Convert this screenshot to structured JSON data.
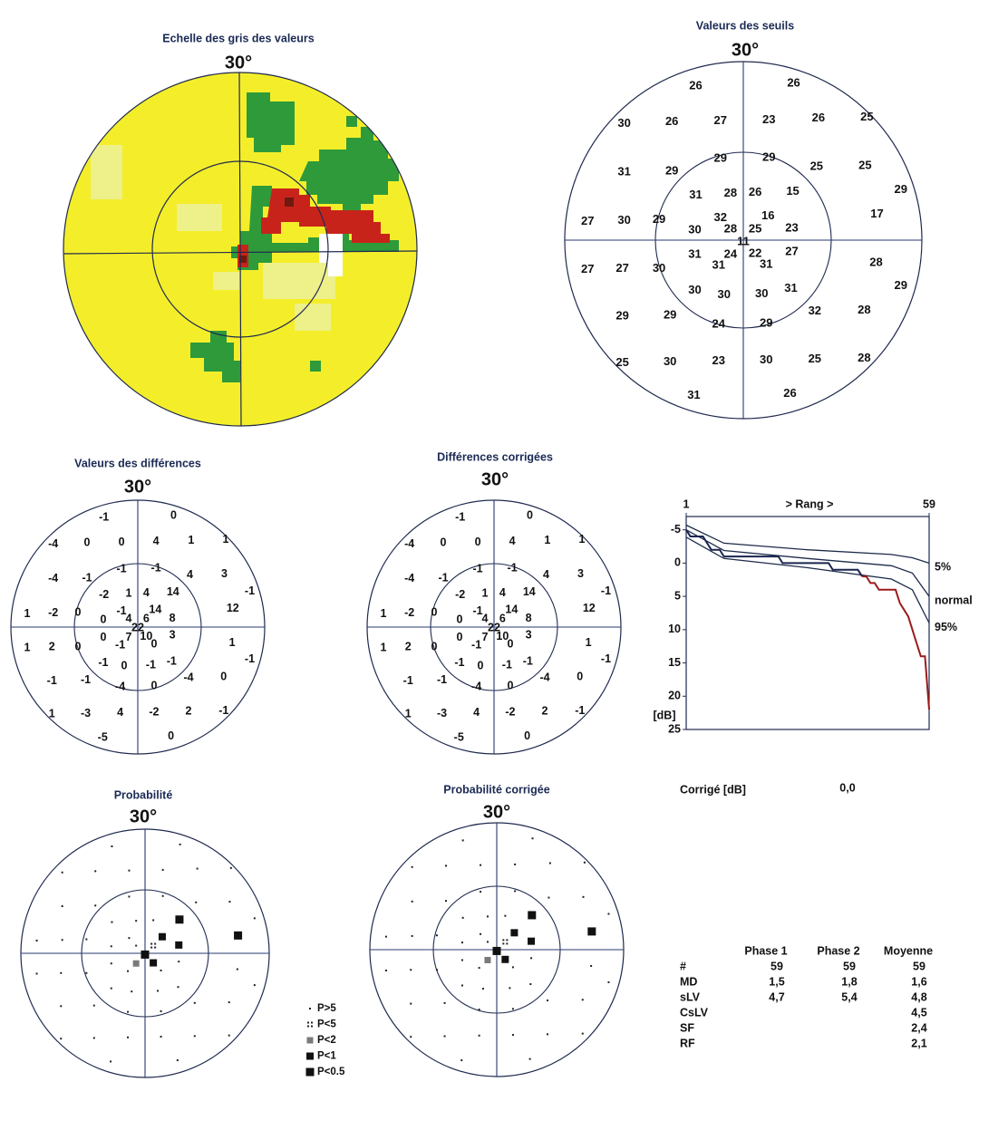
{
  "gray_scale": {
    "title": "Echelle des gris des valeurs",
    "scale": "30°"
  },
  "thresholds": {
    "title": "Valeurs des seuils",
    "scale": "30°",
    "values": [
      26,
      26,
      30,
      26,
      27,
      23,
      26,
      25,
      29,
      29,
      31,
      29,
      25,
      25,
      29,
      31,
      28,
      26,
      15,
      27,
      30,
      29,
      30,
      32,
      28,
      25,
      16,
      23,
      17,
      11,
      31,
      24,
      22,
      27,
      31,
      31,
      27,
      27,
      30,
      28,
      29,
      30,
      30,
      30,
      31,
      29,
      29,
      24,
      29,
      32,
      28,
      25,
      30,
      23,
      30,
      25,
      28,
      31,
      26
    ]
  },
  "differences": {
    "title": "Valeurs des différences",
    "scale": "30°",
    "values": [
      -1,
      0,
      -4,
      0,
      0,
      4,
      1,
      1,
      -1,
      -1,
      -4,
      -1,
      4,
      3,
      -1,
      -2,
      1,
      4,
      14,
      1,
      -2,
      0,
      0,
      -1,
      4,
      6,
      14,
      8,
      12,
      22,
      0,
      7,
      10,
      3,
      -1,
      0,
      1,
      2,
      0,
      1,
      -1,
      -1,
      0,
      -1,
      -1,
      -1,
      -1,
      -4,
      0,
      -4,
      0,
      1,
      -3,
      4,
      -2,
      2,
      -1,
      -5,
      0
    ]
  },
  "corrected_differences": {
    "title": "Différences corrigées",
    "scale": "30°",
    "values": [
      -1,
      0,
      -4,
      0,
      0,
      4,
      1,
      1,
      -1,
      -1,
      -4,
      -1,
      4,
      3,
      -1,
      -2,
      1,
      4,
      14,
      1,
      -2,
      0,
      0,
      -1,
      4,
      6,
      14,
      8,
      12,
      22,
      0,
      7,
      10,
      3,
      -1,
      0,
      1,
      2,
      0,
      1,
      -1,
      -1,
      0,
      -1,
      -1,
      -1,
      -1,
      -4,
      0,
      -4,
      0,
      1,
      -3,
      4,
      -2,
      2,
      -1,
      -5,
      0
    ]
  },
  "probability": {
    "title": "Probabilité",
    "scale": "30°",
    "levels": [
      0,
      0,
      0,
      0,
      0,
      0,
      0,
      0,
      0,
      0,
      0,
      0,
      0,
      0,
      0,
      0,
      0,
      0,
      4,
      0,
      0,
      0,
      0,
      0,
      0,
      1,
      3,
      3,
      4,
      4,
      0,
      2,
      3,
      0,
      0,
      0,
      0,
      0,
      0,
      0,
      0,
      0,
      0,
      0,
      0,
      0,
      0,
      0,
      0,
      0,
      0,
      0,
      0,
      0,
      0,
      0,
      0,
      0,
      0
    ]
  },
  "corrected_probability": {
    "title": "Probabilité corrigée",
    "scale": "30°",
    "levels": [
      0,
      0,
      0,
      0,
      0,
      0,
      0,
      0,
      0,
      0,
      0,
      0,
      0,
      0,
      0,
      0,
      0,
      0,
      4,
      0,
      0,
      0,
      0,
      0,
      0,
      1,
      3,
      3,
      4,
      4,
      0,
      2,
      3,
      0,
      0,
      0,
      0,
      0,
      0,
      0,
      0,
      0,
      0,
      0,
      0,
      0,
      0,
      0,
      0,
      0,
      0,
      0,
      0,
      0,
      0,
      0,
      0,
      0,
      0
    ]
  },
  "legend": [
    "P>5",
    "P<5",
    "P<2",
    "P<1",
    "P<0.5"
  ],
  "chart_data": {
    "type": "line",
    "x_label": "> Rang >",
    "y_label": "[dB]",
    "xlim": [
      1,
      59
    ],
    "xticks": [
      1,
      59
    ],
    "ylim": [
      -7,
      25
    ],
    "yticks": [
      -5,
      0,
      5,
      10,
      15,
      20,
      25
    ],
    "y_inverted": true,
    "alert_color": "#9b1b1b",
    "series": [
      {
        "name": "5%",
        "color": "#1d2b4a",
        "x": [
          1,
          10,
          30,
          50,
          55,
          59
        ],
        "values": [
          -5.7,
          -3,
          -2,
          -1.3,
          -0.8,
          0
        ]
      },
      {
        "name": "normal",
        "color": "#1d2b4a",
        "x": [
          1,
          10,
          30,
          50,
          55,
          59
        ],
        "values": [
          -5,
          -1.9,
          -0.7,
          0.4,
          1.5,
          5
        ]
      },
      {
        "name": "95%",
        "color": "#1d2b4a",
        "x": [
          1,
          10,
          30,
          50,
          55,
          59
        ],
        "values": [
          -3.9,
          -0.7,
          0.7,
          2.4,
          4,
          9
        ]
      },
      {
        "color": "#1a2550",
        "x": [
          1,
          2,
          3,
          4,
          5,
          6,
          7,
          8,
          9,
          10,
          11,
          12,
          13,
          14,
          15,
          16,
          17,
          18,
          19,
          20,
          21,
          22,
          23,
          24,
          25,
          26,
          27,
          28,
          29,
          30,
          31,
          32,
          33,
          34,
          35,
          36,
          37,
          38,
          39,
          40,
          41,
          42,
          43,
          44,
          45,
          46,
          47,
          48,
          49,
          50,
          51,
          52,
          53,
          54,
          55,
          56,
          57,
          58,
          59
        ],
        "values": [
          -5,
          -4,
          -4,
          -4,
          -4,
          -3,
          -2,
          -2,
          -2,
          -1,
          -1,
          -1,
          -1,
          -1,
          -1,
          -1,
          -1,
          -1,
          -1,
          -1,
          -1,
          -1,
          -1,
          0,
          0,
          0,
          0,
          0,
          0,
          0,
          0,
          0,
          0,
          0,
          0,
          1,
          1,
          1,
          1,
          1,
          1,
          1,
          2,
          2,
          3,
          3,
          4,
          4,
          4,
          4,
          4,
          6,
          7,
          8,
          10,
          12,
          14,
          14,
          22
        ]
      }
    ]
  },
  "corrected": {
    "label": "Corrigé [dB]",
    "value": "0,0"
  },
  "stats": {
    "columns": [
      "Phase 1",
      "Phase 2",
      "Moyenne"
    ],
    "rows": [
      {
        "label": "#",
        "values": [
          "59",
          "59",
          "59"
        ]
      },
      {
        "label": "MD",
        "values": [
          "1,5",
          "1,8",
          "1,6"
        ]
      },
      {
        "label": "sLV",
        "values": [
          "4,7",
          "5,4",
          "4,8"
        ]
      },
      {
        "label": "CsLV",
        "values": [
          null,
          null,
          "4,5"
        ]
      },
      {
        "label": "SF",
        "values": [
          null,
          null,
          "2,4"
        ]
      },
      {
        "label": "RF",
        "values": [
          null,
          null,
          "2,1"
        ]
      }
    ]
  }
}
